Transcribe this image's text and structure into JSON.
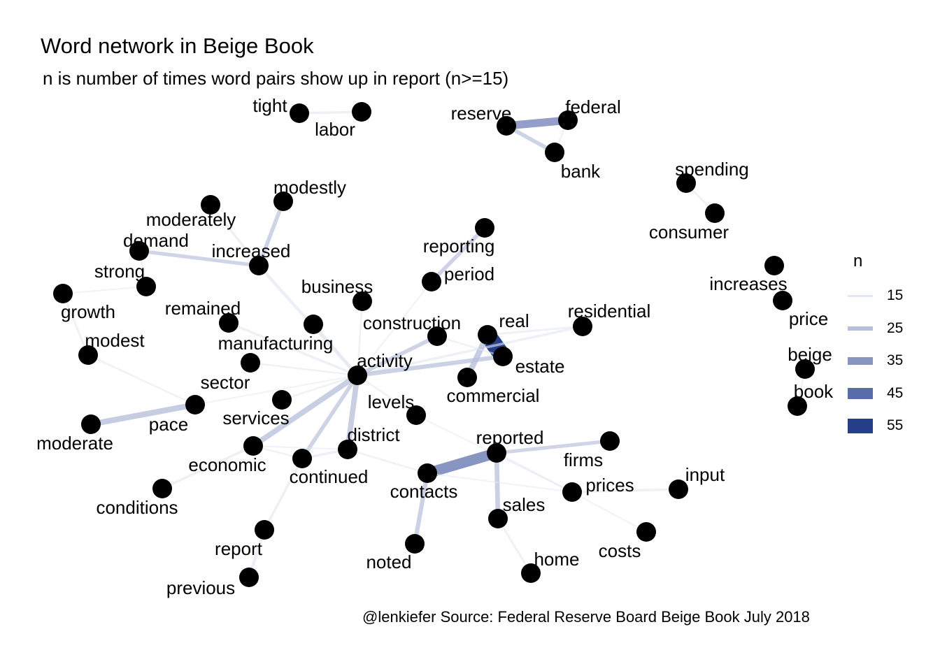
{
  "title": "Word network in Beige Book",
  "subtitle": "n is number of times word pairs show up in report (n>=15)",
  "caption": "@lenkiefer Source: Federal Reserve Board Beige Book July 2018",
  "legend": {
    "title": "n",
    "items": [
      {
        "label": "15",
        "n": 15,
        "color": "#e3e7f1"
      },
      {
        "label": "25",
        "n": 25,
        "color": "#b7c0da"
      },
      {
        "label": "35",
        "n": 35,
        "color": "#8895c3"
      },
      {
        "label": "45",
        "n": 45,
        "color": "#5a6ba9"
      },
      {
        "label": "55",
        "n": 55,
        "color": "#253f8a"
      }
    ]
  },
  "chart_data": {
    "type": "network",
    "nodes": [
      "tight",
      "labor",
      "reserve",
      "federal",
      "bank",
      "spending",
      "consumer",
      "modestly",
      "moderately",
      "demand",
      "increased",
      "strong",
      "growth",
      "remained",
      "modest",
      "reporting",
      "period",
      "business",
      "increases",
      "price",
      "beige",
      "book",
      "residential",
      "real",
      "estate",
      "construction",
      "manufacturing",
      "activity",
      "commercial",
      "sector",
      "services",
      "pace",
      "moderate",
      "levels",
      "district",
      "economic",
      "continued",
      "contacts",
      "reported",
      "firms",
      "prices",
      "input",
      "sales",
      "conditions",
      "report",
      "previous",
      "noted",
      "home",
      "costs"
    ],
    "edges": [
      {
        "from": "tight",
        "to": "labor",
        "n": 18
      },
      {
        "from": "federal",
        "to": "reserve",
        "n": 33
      },
      {
        "from": "reserve",
        "to": "bank",
        "n": 22
      },
      {
        "from": "federal",
        "to": "bank",
        "n": 16
      },
      {
        "from": "consumer",
        "to": "spending",
        "n": 16
      },
      {
        "from": "modestly",
        "to": "increased",
        "n": 22
      },
      {
        "from": "moderately",
        "to": "increased",
        "n": 18
      },
      {
        "from": "demand",
        "to": "increased",
        "n": 21
      },
      {
        "from": "increased",
        "to": "activity",
        "n": 20
      },
      {
        "from": "strong",
        "to": "demand",
        "n": 16
      },
      {
        "from": "strong",
        "to": "growth",
        "n": 15
      },
      {
        "from": "modest",
        "to": "growth",
        "n": 17
      },
      {
        "from": "remained",
        "to": "activity",
        "n": 18
      },
      {
        "from": "reporting",
        "to": "period",
        "n": 22
      },
      {
        "from": "period",
        "to": "activity",
        "n": 15
      },
      {
        "from": "business",
        "to": "activity",
        "n": 16
      },
      {
        "from": "price",
        "to": "increases",
        "n": 16
      },
      {
        "from": "beige",
        "to": "book",
        "n": 16
      },
      {
        "from": "real",
        "to": "estate",
        "n": 57
      },
      {
        "from": "residential",
        "to": "real",
        "n": 17
      },
      {
        "from": "residential",
        "to": "activity",
        "n": 18
      },
      {
        "from": "commercial",
        "to": "real",
        "n": 27
      },
      {
        "from": "construction",
        "to": "activity",
        "n": 22
      },
      {
        "from": "construction",
        "to": "estate",
        "n": 16
      },
      {
        "from": "estate",
        "to": "activity",
        "n": 23
      },
      {
        "from": "manufacturing",
        "to": "activity",
        "n": 20
      },
      {
        "from": "sector",
        "to": "activity",
        "n": 16
      },
      {
        "from": "services",
        "to": "activity",
        "n": 16
      },
      {
        "from": "pace",
        "to": "activity",
        "n": 15
      },
      {
        "from": "moderate",
        "to": "pace",
        "n": 27
      },
      {
        "from": "modest",
        "to": "pace",
        "n": 16
      },
      {
        "from": "district",
        "to": "activity",
        "n": 26
      },
      {
        "from": "economic",
        "to": "activity",
        "n": 26
      },
      {
        "from": "continued",
        "to": "activity",
        "n": 22
      },
      {
        "from": "activity",
        "to": "levels",
        "n": 16
      },
      {
        "from": "economic",
        "to": "conditions",
        "n": 18
      },
      {
        "from": "economic",
        "to": "continued",
        "n": 16
      },
      {
        "from": "economic",
        "to": "district",
        "n": 15
      },
      {
        "from": "district",
        "to": "continued",
        "n": 18
      },
      {
        "from": "district",
        "to": "contacts",
        "n": 16
      },
      {
        "from": "report",
        "to": "continued",
        "n": 18
      },
      {
        "from": "previous",
        "to": "report",
        "n": 20
      },
      {
        "from": "contacts",
        "to": "reported",
        "n": 40
      },
      {
        "from": "contacts",
        "to": "noted",
        "n": 23
      },
      {
        "from": "reported",
        "to": "firms",
        "n": 21
      },
      {
        "from": "reported",
        "to": "sales",
        "n": 24
      },
      {
        "from": "reported",
        "to": "prices",
        "n": 16
      },
      {
        "from": "contacts",
        "to": "prices",
        "n": 15
      },
      {
        "from": "levels",
        "to": "prices",
        "n": 15
      },
      {
        "from": "input",
        "to": "prices",
        "n": 18
      },
      {
        "from": "home",
        "to": "sales",
        "n": 17
      },
      {
        "from": "costs",
        "to": "prices",
        "n": 15
      }
    ]
  }
}
